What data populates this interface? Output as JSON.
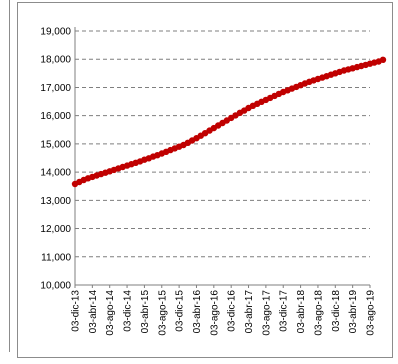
{
  "chart_data": {
    "type": "line",
    "title": "",
    "xlabel": "",
    "ylabel": "",
    "ylim": [
      10000,
      19000
    ],
    "y_ticks": [
      "10,000",
      "11,000",
      "12,000",
      "13,000",
      "14,000",
      "15,000",
      "16,000",
      "17,000",
      "18,000",
      "19,000"
    ],
    "y_tick_values": [
      10000,
      11000,
      12000,
      13000,
      14000,
      15000,
      16000,
      17000,
      18000,
      19000
    ],
    "x_ticks": [
      "03-dic-13",
      "03-abr-14",
      "03-ago-14",
      "03-dic-14",
      "03-abr-15",
      "03-ago-15",
      "03-dic-15",
      "03-abr-16",
      "03-ago-16",
      "03-dic-16",
      "03-abr-17",
      "03-ago-17",
      "03-dic-17",
      "03-abr-18",
      "03-ago-18",
      "03-dic-18",
      "03-abr-19",
      "03-ago-19"
    ],
    "grid": "horizontal dashed",
    "series": [
      {
        "color": "#c00000",
        "x": [
          "03-dic-13",
          "03-ene-14",
          "03-feb-14",
          "03-mar-14",
          "03-abr-14",
          "03-may-14",
          "03-jun-14",
          "03-jul-14",
          "03-ago-14",
          "03-sep-14",
          "03-oct-14",
          "03-nov-14",
          "03-dic-14",
          "03-ene-15",
          "03-feb-15",
          "03-mar-15",
          "03-abr-15",
          "03-may-15",
          "03-jun-15",
          "03-jul-15",
          "03-ago-15",
          "03-sep-15",
          "03-oct-15",
          "03-nov-15",
          "03-dic-15",
          "03-ene-16",
          "03-feb-16",
          "03-mar-16",
          "03-abr-16",
          "03-may-16",
          "03-jun-16",
          "03-jul-16",
          "03-ago-16",
          "03-sep-16",
          "03-oct-16",
          "03-nov-16",
          "03-dic-16",
          "03-ene-17",
          "03-feb-17",
          "03-mar-17",
          "03-abr-17",
          "03-may-17",
          "03-jun-17",
          "03-jul-17",
          "03-ago-17",
          "03-sep-17",
          "03-oct-17",
          "03-nov-17",
          "03-dic-17",
          "03-ene-18",
          "03-feb-18",
          "03-mar-18",
          "03-abr-18",
          "03-may-18",
          "03-jun-18",
          "03-jul-18",
          "03-ago-18",
          "03-sep-18",
          "03-oct-18",
          "03-nov-18",
          "03-dic-18",
          "03-ene-19",
          "03-feb-19",
          "03-mar-19",
          "03-abr-19",
          "03-may-19",
          "03-jun-19",
          "03-jul-19",
          "03-ago-19",
          "03-sep-19",
          "03-oct-19",
          "03-nov-19"
        ],
        "values": [
          13580,
          13650,
          13720,
          13780,
          13830,
          13880,
          13930,
          13980,
          14030,
          14080,
          14130,
          14180,
          14230,
          14280,
          14330,
          14380,
          14440,
          14490,
          14550,
          14600,
          14660,
          14720,
          14780,
          14840,
          14900,
          14960,
          15040,
          15120,
          15200,
          15290,
          15380,
          15470,
          15560,
          15650,
          15740,
          15830,
          15920,
          16010,
          16100,
          16180,
          16270,
          16350,
          16420,
          16490,
          16560,
          16630,
          16700,
          16770,
          16840,
          16900,
          16960,
          17020,
          17080,
          17140,
          17200,
          17250,
          17300,
          17350,
          17400,
          17450,
          17500,
          17550,
          17600,
          17640,
          17680,
          17720,
          17760,
          17800,
          17840,
          17880,
          17920,
          17980
        ]
      }
    ]
  }
}
